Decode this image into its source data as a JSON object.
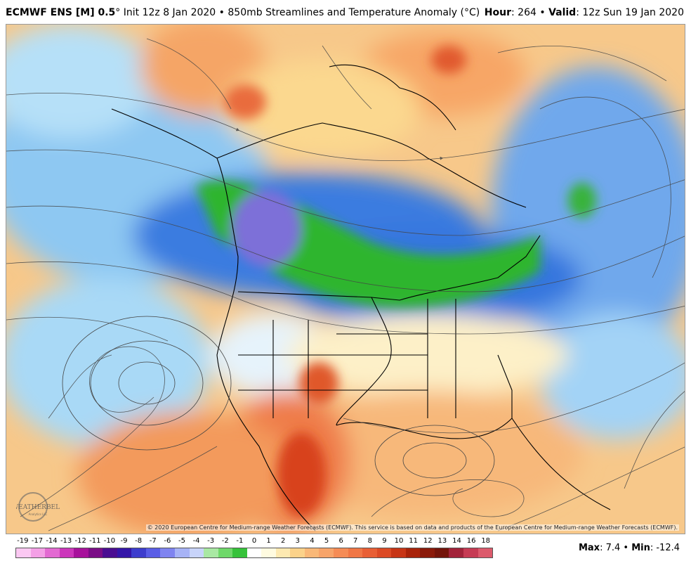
{
  "header": {
    "model": "ECMWF ENS [M] 0.5",
    "degree": "°",
    "init": " Init 12z 8 Jan 2020",
    "bullet": " • ",
    "product": "850mb Streamlines and Temperature Anomaly (°C)",
    "hour_label": "Hour",
    "hour_value": ": 264",
    "valid_label": "Valid",
    "valid_value": ": 12z Sun 19 Jan 2020"
  },
  "map": {
    "copyright": "© 2020 European Centre for Medium-range Weather Forecasts (ECMWF). This service is based on data and products of the European Centre for Medium-range Weather Forecasts (ECMWF).",
    "logo_text": "WEATHERBELL",
    "logo_subtext": "Analytics LLC"
  },
  "legend": {
    "ticks": [
      "-19",
      "-17",
      "-14",
      "-13",
      "-12",
      "-11",
      "-10",
      "-9",
      "-8",
      "-7",
      "-6",
      "-5",
      "-4",
      "-3",
      "-2",
      "-1",
      "0",
      "1",
      "2",
      "3",
      "4",
      "5",
      "6",
      "7",
      "8",
      "9",
      "10",
      "11",
      "12",
      "13",
      "14",
      "16",
      "18"
    ],
    "colors": [
      "#fbc8f2",
      "#f4a0e6",
      "#e36ad2",
      "#cc36bb",
      "#a7119b",
      "#7a0d86",
      "#4a0d91",
      "#3416a8",
      "#3d3dcd",
      "#5a5ee6",
      "#7f84f0",
      "#a7b3f6",
      "#c8d4fa",
      "#a9e8a3",
      "#6fd86a",
      "#36c23a",
      "#14a51b",
      "#0b8a8a",
      "#1a5fd6",
      "#3f87e8",
      "#6fb1f0",
      "#a7d5f7",
      "#d7effb",
      "#ffffff",
      "#fffbe0",
      "#fde9b1",
      "#fbd28a",
      "#f9b878",
      "#f79a5e",
      "#f47a45",
      "#e85a2c",
      "#d23b17",
      "#b2210b"
    ],
    "colors_warm": [
      "#fffbe0",
      "#fde9b1",
      "#fbd28a",
      "#f9b878",
      "#f7a46a",
      "#f58c56",
      "#f07645",
      "#e85f35",
      "#dc4a25",
      "#c73516",
      "#a8230a",
      "#8a1a0a",
      "#73140a",
      "#a2233a",
      "#c63b54",
      "#dc5a6c",
      "#ea7b86",
      "#f39aa0",
      "#e86060"
    ]
  },
  "stats": {
    "max_label": "Max",
    "max_value": ": 7.4",
    "sep": " • ",
    "min_label": "Min",
    "min_value": ": -12.4"
  }
}
